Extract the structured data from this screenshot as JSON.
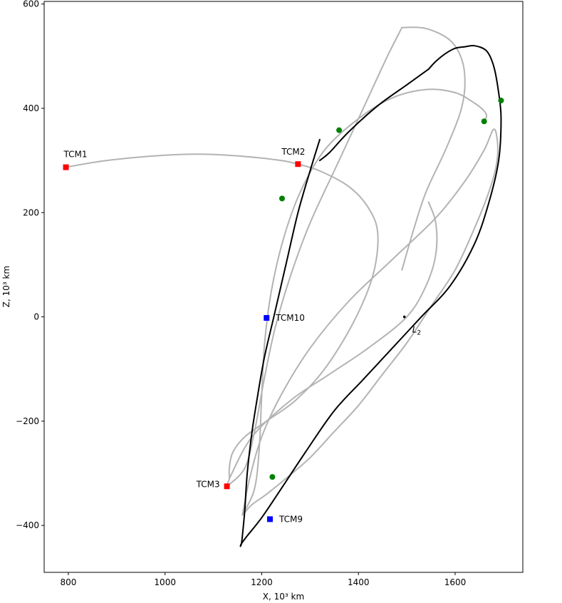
{
  "chart_data": {
    "type": "line",
    "xlabel": "X, 10³ km",
    "ylabel": "Z, 10³ km",
    "xlim": [
      750,
      1740
    ],
    "ylim": [
      -490,
      605
    ],
    "xticks": [
      800,
      1000,
      1200,
      1400,
      1600
    ],
    "yticks": [
      -400,
      -200,
      0,
      200,
      400,
      600
    ],
    "grid": false,
    "colors": {
      "trajectory": "#b3b3b3",
      "orbit": "#000000",
      "tcm_red": "#ff0000",
      "tcm_blue": "#0000ff",
      "marker_green": "#008000"
    },
    "series": [
      {
        "style": "gray",
        "x": [
          795,
          880,
          1000,
          1080,
          1160,
          1240,
          1275
        ],
        "y": [
          287,
          300,
          310,
          312,
          308,
          300,
          293
        ]
      },
      {
        "style": "gray",
        "x": [
          1275,
          1320,
          1380,
          1420,
          1440,
          1430,
          1390,
          1330,
          1270,
          1210,
          1165,
          1140,
          1133,
          1133,
          1130,
          1128
        ],
        "y": [
          293,
          280,
          250,
          210,
          160,
          80,
          -10,
          -100,
          -160,
          -200,
          -230,
          -260,
          -290,
          -310,
          -318,
          -325
        ]
      },
      {
        "style": "gray",
        "x": [
          1128,
          1165,
          1185,
          1205,
          1228,
          1260,
          1300,
          1360,
          1420,
          1460,
          1490
        ],
        "y": [
          -325,
          -290,
          -220,
          -120,
          -20,
          80,
          180,
          300,
          420,
          500,
          555
        ]
      },
      {
        "style": "gray",
        "x": [
          1490,
          1540,
          1590,
          1615,
          1620,
          1610,
          1580,
          1540,
          1515,
          1490
        ],
        "y": [
          555,
          553,
          530,
          490,
          440,
          390,
          320,
          240,
          170,
          90
        ]
      },
      {
        "style": "gray",
        "x": [
          1133,
          1180,
          1260,
          1340,
          1420,
          1500,
          1540,
          1560,
          1560,
          1545
        ],
        "y": [
          -310,
          -230,
          -160,
          -110,
          -60,
          0,
          60,
          120,
          180,
          220
        ]
      },
      {
        "style": "gray",
        "x": [
          1160,
          1175,
          1200,
          1240,
          1300,
          1380,
          1470,
          1560,
          1620,
          1660,
          1680,
          1688,
          1685,
          1670,
          1640,
          1600,
          1550,
          1500,
          1450,
          1400,
          1350,
          1300,
          1250,
          1210,
          1180,
          1165,
          1160
        ],
        "y": [
          -380,
          -310,
          -230,
          -150,
          -60,
          30,
          110,
          190,
          260,
          320,
          360,
          330,
          290,
          240,
          170,
          90,
          20,
          -50,
          -110,
          -170,
          -220,
          -270,
          -310,
          -340,
          -360,
          -375,
          -380
        ]
      },
      {
        "style": "gray",
        "x": [
          1160,
          1185,
          1195,
          1200,
          1206,
          1220,
          1245,
          1280,
          1330,
          1400,
          1470,
          1540,
          1600,
          1640,
          1660,
          1665,
          1660
        ],
        "y": [
          -380,
          -330,
          -250,
          -150,
          -50,
          50,
          150,
          240,
          320,
          380,
          420,
          436,
          430,
          410,
          395,
          385,
          375
        ]
      },
      {
        "style": "black",
        "x": [
          1320,
          1300,
          1275,
          1250,
          1225,
          1205,
          1190,
          1180,
          1170,
          1165,
          1160,
          1158,
          1156,
          1158,
          1170,
          1200,
          1240,
          1290,
          1350,
          1410,
          1470,
          1530,
          1590,
          1640,
          1670,
          1690,
          1695,
          1690,
          1680,
          1665,
          1640,
          1620,
          1600,
          1580,
          1560,
          1545
        ],
        "y": [
          340,
          280,
          200,
          100,
          0,
          -80,
          -160,
          -220,
          -300,
          -370,
          -420,
          -435,
          -440,
          -435,
          -420,
          -385,
          -330,
          -260,
          -180,
          -120,
          -60,
          0,
          60,
          140,
          220,
          300,
          380,
          430,
          480,
          510,
          520,
          518,
          515,
          505,
          490,
          475
        ]
      },
      {
        "style": "black",
        "x": [
          1545,
          1500,
          1440,
          1380,
          1340,
          1320
        ],
        "y": [
          475,
          445,
          405,
          355,
          315,
          300
        ]
      }
    ],
    "tcm_markers": [
      {
        "label": "TCM1",
        "x": 795,
        "y": 287,
        "color": "#ff0000",
        "label_pos": "above"
      },
      {
        "label": "TCM2",
        "x": 1275,
        "y": 293,
        "color": "#ff0000",
        "label_pos": "above-left"
      },
      {
        "label": "TCM3",
        "x": 1128,
        "y": -325,
        "color": "#ff0000",
        "label_pos": "left"
      },
      {
        "label": "TCM10",
        "x": 1210,
        "y": -2,
        "color": "#0000ff",
        "label_pos": "right"
      },
      {
        "label": "TCM9",
        "x": 1217,
        "y": -388,
        "color": "#0000ff",
        "label_pos": "right"
      }
    ],
    "green_markers": [
      {
        "x": 1242,
        "y": 227
      },
      {
        "x": 1360,
        "y": 358
      },
      {
        "x": 1660,
        "y": 375
      },
      {
        "x": 1695,
        "y": 415
      },
      {
        "x": 1222,
        "y": -307
      }
    ],
    "l2": {
      "label": "L",
      "subscript": "2",
      "x": 1495,
      "y": 0
    }
  }
}
